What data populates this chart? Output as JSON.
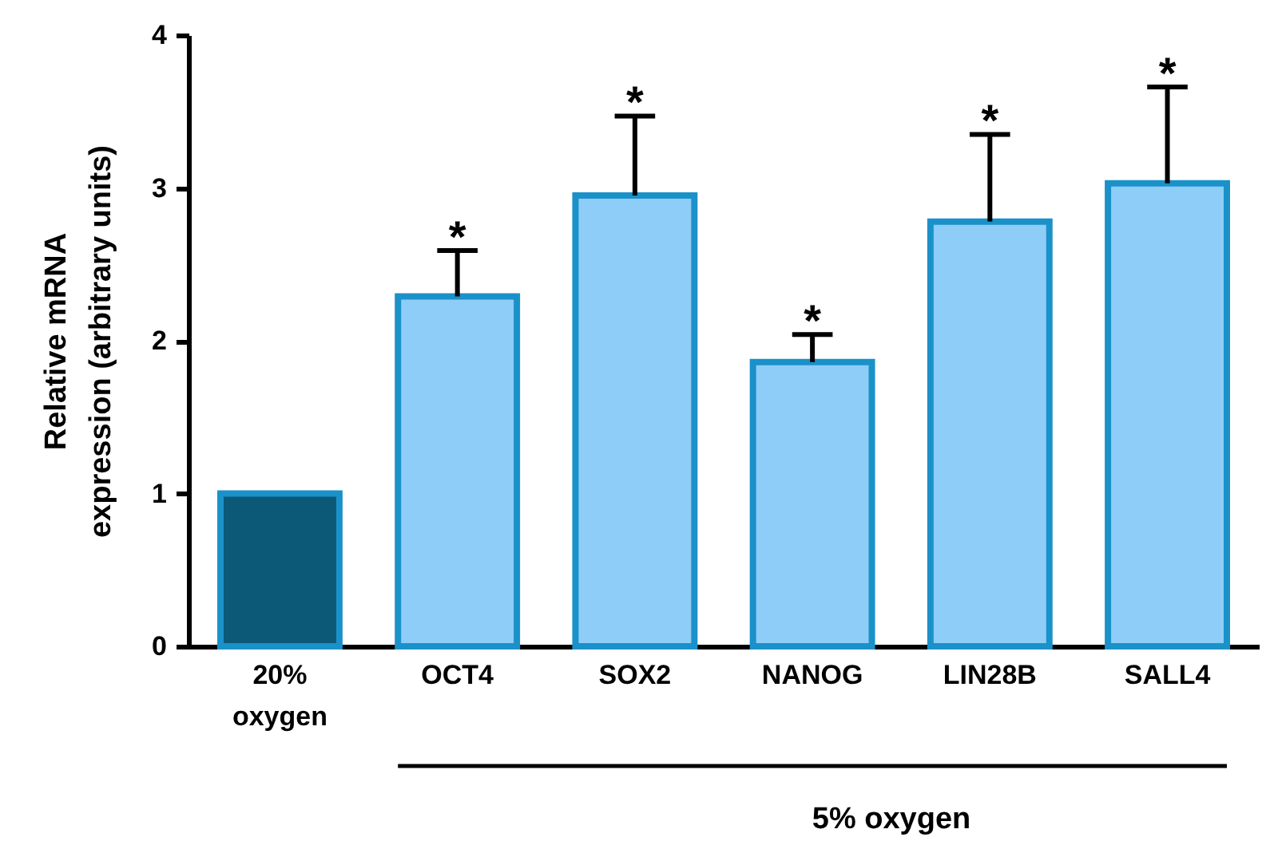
{
  "chart_data": {
    "type": "bar",
    "ylabel": "Relative mRNA\nexpression (arbitrary units)",
    "categories": [
      "20%\noxygen",
      "OCT4",
      "SOX2",
      "NANOG",
      "LIN28B",
      "SALL4"
    ],
    "values": [
      1.0,
      2.29,
      2.95,
      1.86,
      2.78,
      3.03
    ],
    "colors": [
      "#0b5877",
      "#8ecdf7",
      "#8ecdf7",
      "#8ecdf7",
      "#8ecdf7",
      "#8ecdf7"
    ],
    "errors": [
      null,
      [
        2.29,
        2.59
      ],
      [
        2.95,
        3.47
      ],
      [
        1.86,
        2.04
      ],
      [
        2.78,
        3.35
      ],
      [
        3.03,
        3.66
      ]
    ],
    "ylim": [
      0,
      4
    ],
    "yticks": [
      0,
      1,
      2,
      3,
      4
    ],
    "annotations": [
      {
        "text": "*",
        "x": "OCT4",
        "y": 2.59
      },
      {
        "text": "*",
        "x": "SOX2",
        "y": 3.47
      },
      {
        "text": "*",
        "x": "NANOG",
        "y": 2.04
      },
      {
        "text": "*",
        "x": "LIN28B",
        "y": 3.35
      },
      {
        "text": "*",
        "x": "SALL4",
        "y": 3.66
      },
      "5% oxygen"
    ]
  }
}
